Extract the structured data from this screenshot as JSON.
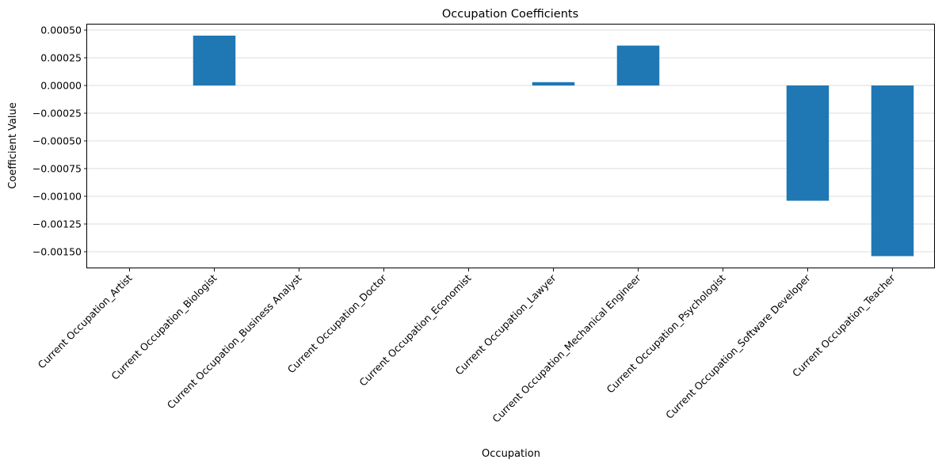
{
  "chart_data": {
    "type": "bar",
    "title": "Occupation Coefficients",
    "xlabel": "Occupation",
    "ylabel": "Coefficient Value",
    "categories": [
      "Current Occupation_Artist",
      "Current Occupation_Biologist",
      "Current Occupation_Business Analyst",
      "Current Occupation_Doctor",
      "Current Occupation_Economist",
      "Current Occupation_Lawyer",
      "Current Occupation_Mechanical Engineer",
      "Current Occupation_Psychologist",
      "Current Occupation_Software Developer",
      "Current Occupation_Teacher"
    ],
    "values": [
      0.0,
      0.00045,
      0.0,
      0.0,
      0.0,
      3e-05,
      0.00036,
      0.0,
      -0.00104,
      -0.00154
    ],
    "ylim": [
      -0.00165,
      0.00055
    ],
    "yticks": [
      0.0005,
      0.00025,
      0.0,
      -0.00025,
      -0.0005,
      -0.00075,
      -0.001,
      -0.00125,
      -0.0015
    ],
    "ytick_labels": [
      "0.00050",
      "0.00025",
      "0.00000",
      "−0.00025",
      "−0.00050",
      "−0.00075",
      "−0.00100",
      "−0.00125",
      "−0.00150"
    ],
    "grid": "y",
    "legend": "none",
    "bar_color": "#1f77b4"
  }
}
